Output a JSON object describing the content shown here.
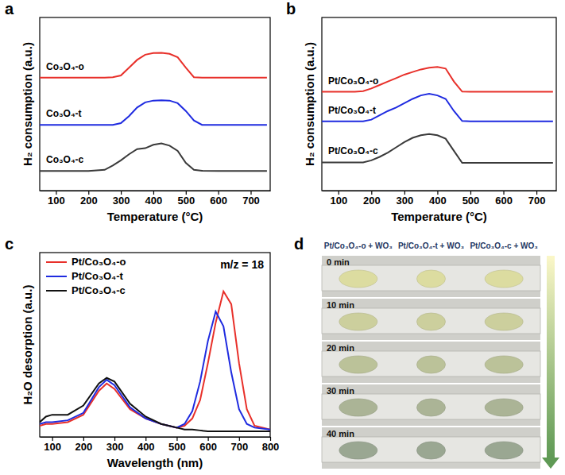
{
  "chart_data": [
    {
      "type": "line",
      "panel_label": "a",
      "x_label": "Temperature (°C)",
      "y_label": "H₂ consumption (a.u.)",
      "xlim": [
        50,
        760
      ],
      "xticks": [
        100,
        200,
        300,
        400,
        500,
        600,
        700
      ],
      "ylim": [
        0,
        10
      ],
      "tick_labels": "x",
      "x": [
        50,
        100,
        150,
        200,
        250,
        275,
        300,
        325,
        350,
        375,
        400,
        425,
        450,
        475,
        500,
        525,
        550,
        600,
        650,
        700,
        750
      ],
      "series": [
        {
          "name": "Co₃O₄-o",
          "color": "#e8302a",
          "values": [
            6.53,
            6.53,
            6.53,
            6.53,
            6.53,
            6.55,
            6.65,
            7.1,
            7.55,
            7.85,
            7.95,
            7.96,
            7.9,
            7.7,
            7.1,
            6.55,
            6.53,
            6.53,
            6.53,
            6.53,
            6.53
          ]
        },
        {
          "name": "Co₃O₄-t",
          "color": "#1f2be0",
          "values": [
            3.8,
            3.8,
            3.8,
            3.8,
            3.8,
            3.8,
            3.9,
            4.3,
            4.8,
            5.1,
            5.2,
            5.22,
            5.2,
            5.05,
            4.6,
            4.05,
            3.8,
            3.8,
            3.8,
            3.8,
            3.8
          ]
        },
        {
          "name": "Co₃O₄-c",
          "color": "#3a3a3a",
          "values": [
            1.14,
            1.14,
            1.14,
            1.14,
            1.2,
            1.45,
            1.75,
            2.1,
            2.4,
            2.45,
            2.65,
            2.73,
            2.6,
            2.3,
            1.6,
            1.2,
            1.15,
            1.14,
            1.14,
            1.14,
            1.14
          ]
        }
      ]
    },
    {
      "type": "line",
      "panel_label": "b",
      "x_label": "Temperature (°C)",
      "y_label": "H₂ consumption (a.u.)",
      "xlim": [
        50,
        760
      ],
      "xticks": [
        100,
        200,
        300,
        400,
        500,
        600,
        700
      ],
      "ylim": [
        0,
        10
      ],
      "tick_labels": "x",
      "x": [
        50,
        100,
        150,
        175,
        200,
        225,
        250,
        275,
        300,
        325,
        350,
        375,
        400,
        425,
        450,
        475,
        500,
        550,
        600,
        650,
        700,
        750
      ],
      "series": [
        {
          "name": "Pt/Co₃O₄-o",
          "color": "#e8302a",
          "values": [
            5.71,
            5.71,
            5.71,
            5.75,
            5.9,
            6.1,
            6.3,
            6.5,
            6.7,
            6.85,
            7.0,
            7.1,
            7.14,
            7.05,
            6.3,
            5.72,
            5.71,
            5.71,
            5.71,
            5.71,
            5.71,
            5.71
          ]
        },
        {
          "name": "Pt/Co₃O₄-t",
          "color": "#1f2be0",
          "values": [
            4.0,
            4.0,
            4.0,
            4.0,
            4.1,
            4.35,
            4.6,
            4.8,
            5.05,
            5.3,
            5.5,
            5.59,
            5.5,
            5.3,
            4.6,
            4.02,
            4.0,
            4.0,
            4.0,
            4.0,
            4.0,
            4.0
          ]
        },
        {
          "name": "Pt/Co₃O₄-c",
          "color": "#3a3a3a",
          "values": [
            1.63,
            1.63,
            1.63,
            1.63,
            1.75,
            1.95,
            2.2,
            2.5,
            2.8,
            3.05,
            3.2,
            3.27,
            3.2,
            3.0,
            2.3,
            1.6,
            1.6,
            1.6,
            1.6,
            1.6,
            1.6,
            1.6
          ]
        }
      ]
    },
    {
      "type": "line",
      "panel_label": "c",
      "x_label": "Wavelength (nm)",
      "y_label": "H₂O desorption (a.u.)",
      "annotation": "m/z = 18",
      "xlim": [
        60,
        800
      ],
      "xticks": [
        100,
        200,
        300,
        400,
        500,
        600,
        700,
        800
      ],
      "ylim": [
        0,
        1
      ],
      "tick_labels": "x",
      "legend": "upper left",
      "x": [
        60,
        80,
        100,
        150,
        200,
        250,
        275,
        300,
        350,
        400,
        450,
        500,
        525,
        550,
        575,
        600,
        625,
        650,
        675,
        700,
        725,
        750,
        800
      ],
      "series": [
        {
          "name": "Pt/Co₃O₄-o",
          "color": "#e8302a",
          "values": [
            0.06,
            0.07,
            0.07,
            0.08,
            0.12,
            0.25,
            0.29,
            0.26,
            0.15,
            0.1,
            0.07,
            0.05,
            0.06,
            0.1,
            0.2,
            0.4,
            0.62,
            0.79,
            0.72,
            0.4,
            0.15,
            0.06,
            0.04
          ]
        },
        {
          "name": "Pt/Co₃O₄-t",
          "color": "#1f2be0",
          "values": [
            0.07,
            0.08,
            0.08,
            0.09,
            0.13,
            0.27,
            0.31,
            0.28,
            0.16,
            0.1,
            0.07,
            0.05,
            0.07,
            0.14,
            0.3,
            0.52,
            0.68,
            0.6,
            0.35,
            0.15,
            0.07,
            0.05,
            0.04
          ]
        },
        {
          "name": "Pt/Co₃O₄-c",
          "color": "#111111",
          "values": [
            0.08,
            0.11,
            0.12,
            0.12,
            0.17,
            0.29,
            0.32,
            0.3,
            0.18,
            0.11,
            0.07,
            0.05,
            0.04,
            0.04,
            0.035,
            0.03,
            0.03,
            0.03,
            0.03,
            0.03,
            0.03,
            0.03,
            0.03
          ]
        }
      ]
    }
  ],
  "panel_d": {
    "panel_label": "d",
    "columns": [
      "Pt/Co₃O₄-o + WO₃",
      "Pt/Co₃O₄-t + WO₃",
      "Pt/Co₃O₄-c + WO₃"
    ],
    "rows": [
      "0 min",
      "10 min",
      "20 min",
      "30 min",
      "40 min"
    ]
  }
}
